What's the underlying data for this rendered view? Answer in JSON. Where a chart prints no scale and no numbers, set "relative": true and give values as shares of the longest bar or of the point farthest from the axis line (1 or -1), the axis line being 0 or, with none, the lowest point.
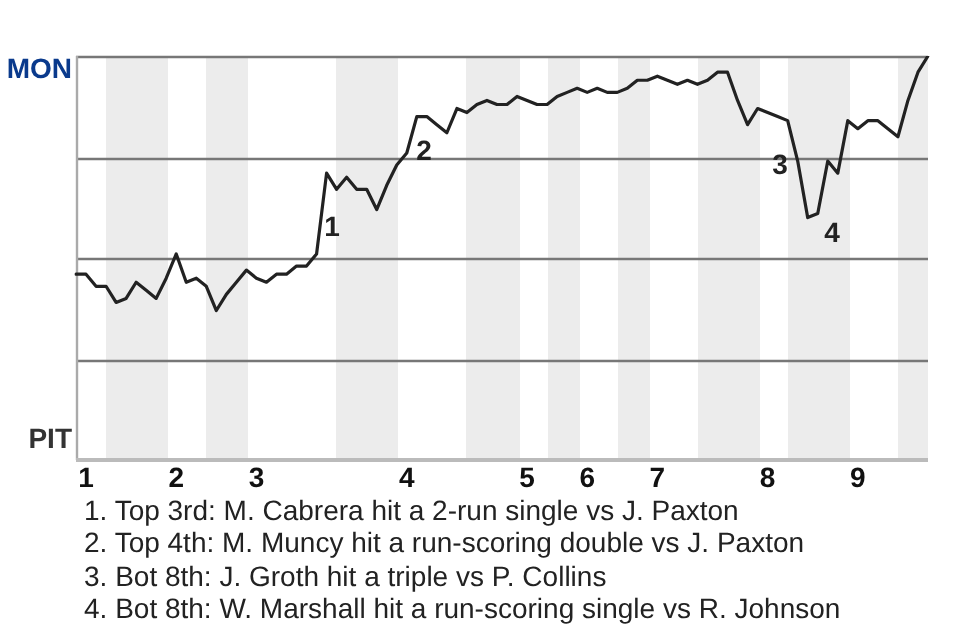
{
  "chart_data": {
    "type": "line",
    "relative": true,
    "categories": [
      null,
      "1",
      null,
      null,
      null,
      null,
      null,
      null,
      null,
      null,
      "2",
      null,
      null,
      null,
      null,
      null,
      null,
      null,
      "3",
      null,
      null,
      null,
      null,
      null,
      null,
      null,
      null,
      null,
      null,
      null,
      null,
      null,
      null,
      "4",
      null,
      null,
      null,
      null,
      null,
      null,
      null,
      null,
      null,
      null,
      null,
      "5",
      null,
      null,
      null,
      null,
      null,
      "6",
      null,
      null,
      null,
      null,
      null,
      null,
      "7",
      null,
      null,
      null,
      null,
      null,
      null,
      null,
      null,
      null,
      null,
      "8",
      null,
      null,
      null,
      null,
      null,
      null,
      null,
      null,
      "9",
      null,
      null,
      null,
      null,
      null,
      null,
      null
    ],
    "legend": false,
    "marker": "none",
    "line_style": "solid",
    "series": [
      {
        "color": "#222222",
        "values": [
          0.46,
          0.46,
          0.43,
          0.43,
          0.39,
          0.4,
          0.44,
          0.42,
          0.4,
          0.45,
          0.51,
          0.44,
          0.45,
          0.43,
          0.37,
          0.41,
          0.44,
          0.47,
          0.45,
          0.44,
          0.46,
          0.46,
          0.48,
          0.48,
          0.51,
          0.71,
          0.67,
          0.7,
          0.67,
          0.67,
          0.62,
          0.68,
          0.73,
          0.76,
          0.85,
          0.85,
          0.83,
          0.81,
          0.87,
          0.86,
          0.88,
          0.89,
          0.88,
          0.88,
          0.9,
          0.89,
          0.88,
          0.88,
          0.9,
          0.91,
          0.92,
          0.91,
          0.92,
          0.91,
          0.91,
          0.92,
          0.94,
          0.94,
          0.95,
          0.94,
          0.93,
          0.94,
          0.93,
          0.94,
          0.96,
          0.96,
          0.89,
          0.83,
          0.87,
          0.86,
          0.85,
          0.84,
          0.74,
          0.6,
          0.61,
          0.74,
          0.71,
          0.84,
          0.82,
          0.84,
          0.84,
          0.82,
          0.8,
          0.89,
          0.96,
          1
        ]
      }
    ],
    "annotations": [
      "MON",
      "PIT",
      "1",
      "2",
      "3",
      "4",
      "1. Top 3rd: M. Cabrera hit a 2-run single vs J. Paxton",
      "2. Top 4th: M. Muncy hit a run-scoring double vs J. Paxton",
      "3. Bot 8th: J. Groth hit a triple vs P. Collins",
      "4. Bot 8th: W. Marshall hit a run-scoring single vs R. Johnson"
    ]
  }
}
